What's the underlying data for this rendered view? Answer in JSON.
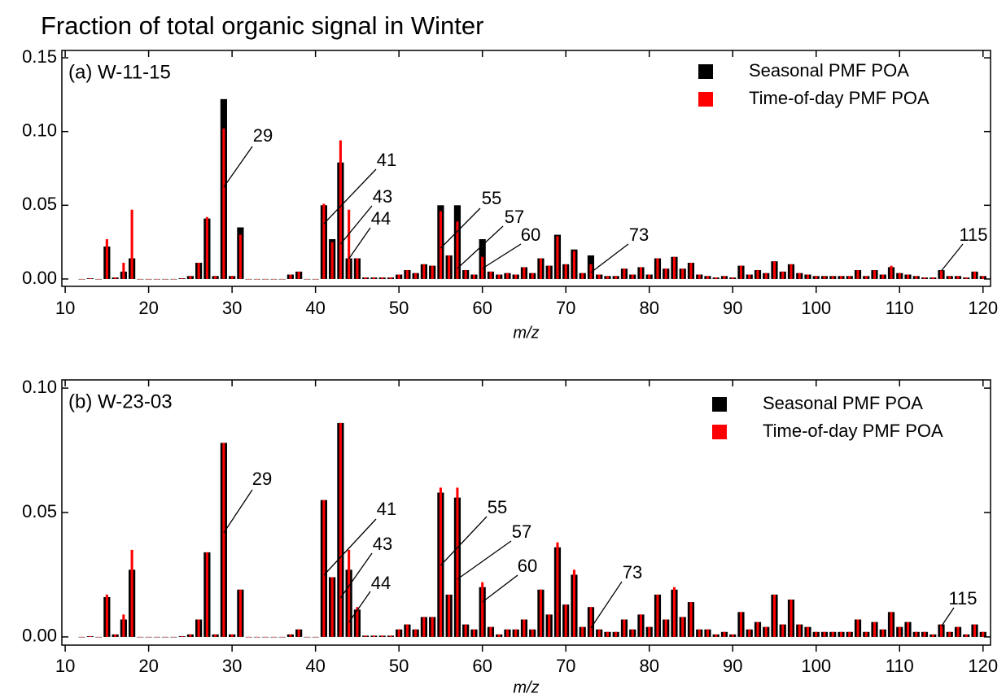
{
  "title": "Fraction of total organic signal in Winter",
  "chart_data": [
    {
      "type": "bar",
      "panel_label": "(a) W-11-15",
      "x_label": "m/z",
      "legend": "upper right",
      "xlim": [
        9.6,
        120.9
      ],
      "xticks": [
        10,
        20,
        30,
        40,
        50,
        60,
        70,
        80,
        90,
        100,
        110,
        120
      ],
      "ylim": [
        -0.005,
        0.155
      ],
      "yticks": [
        {
          "value": 0,
          "label": "0.00"
        },
        {
          "value": 0.05,
          "label": "0.05"
        },
        {
          "value": 0.1,
          "label": "0.10"
        },
        {
          "value": 0.15,
          "label": "0.15"
        }
      ],
      "annotations": [
        29,
        41,
        43,
        44,
        55,
        57,
        60,
        73,
        115
      ],
      "x": [
        12,
        13,
        14,
        15,
        16,
        17,
        18,
        19,
        20,
        21,
        22,
        23,
        24,
        25,
        26,
        27,
        28,
        29,
        30,
        31,
        32,
        33,
        34,
        35,
        36,
        37,
        38,
        39,
        40,
        41,
        42,
        43,
        44,
        45,
        46,
        47,
        48,
        49,
        50,
        51,
        52,
        53,
        54,
        55,
        56,
        57,
        58,
        59,
        60,
        61,
        62,
        63,
        64,
        65,
        66,
        67,
        68,
        69,
        70,
        71,
        72,
        73,
        74,
        75,
        76,
        77,
        78,
        79,
        80,
        81,
        82,
        83,
        84,
        85,
        86,
        87,
        88,
        89,
        90,
        91,
        92,
        93,
        94,
        95,
        96,
        97,
        98,
        99,
        100,
        101,
        102,
        103,
        104,
        105,
        106,
        107,
        108,
        109,
        110,
        111,
        112,
        113,
        114,
        115,
        116,
        117,
        118,
        119,
        120
      ],
      "series": [
        {
          "name": "Seasonal PMF POA",
          "color": "#000000",
          "values": [
            0,
            0.0005,
            0,
            0.022,
            0.001,
            0.005,
            0.014,
            0,
            0,
            0,
            0,
            0,
            0.0005,
            0.002,
            0.011,
            0.041,
            0.002,
            0.122,
            0.002,
            0.035,
            0,
            0,
            0,
            0,
            0,
            0.003,
            0.005,
            0,
            0,
            0.05,
            0.027,
            0.079,
            0.014,
            0.014,
            0.001,
            0.001,
            0.001,
            0.001,
            0.003,
            0.006,
            0.004,
            0.01,
            0.009,
            0.05,
            0.016,
            0.05,
            0.006,
            0.003,
            0.027,
            0.005,
            0.003,
            0.004,
            0.003,
            0.008,
            0.004,
            0.014,
            0.009,
            0.03,
            0.01,
            0.02,
            0.004,
            0.016,
            0.003,
            0.002,
            0.002,
            0.007,
            0.003,
            0.008,
            0.003,
            0.014,
            0.007,
            0.015,
            0.007,
            0.011,
            0.003,
            0.002,
            0.001,
            0.002,
            0.001,
            0.009,
            0.003,
            0.006,
            0.004,
            0.012,
            0.005,
            0.01,
            0.004,
            0.003,
            0.002,
            0.002,
            0.002,
            0.002,
            0.002,
            0.006,
            0.002,
            0.006,
            0.003,
            0.008,
            0.004,
            0.003,
            0.002,
            0.001,
            0.001,
            0.006,
            0.002,
            0.002,
            0.001,
            0.005,
            0.002
          ]
        },
        {
          "name": "Time-of-day PMF POA",
          "color": "#ff0000",
          "values": [
            0,
            0.0005,
            0,
            0.027,
            0.001,
            0.011,
            0.047,
            0,
            0,
            0,
            0,
            0,
            0.0005,
            0.002,
            0.011,
            0.042,
            0.002,
            0.102,
            0.002,
            0.03,
            0,
            0,
            0,
            0,
            0,
            0.003,
            0.005,
            0,
            0,
            0.051,
            0.025,
            0.094,
            0.047,
            0.014,
            0.001,
            0.001,
            0.001,
            0.001,
            0.003,
            0.006,
            0.004,
            0.01,
            0.009,
            0.046,
            0.016,
            0.039,
            0.006,
            0.003,
            0.015,
            0.005,
            0.003,
            0.004,
            0.003,
            0.008,
            0.004,
            0.014,
            0.009,
            0.029,
            0.01,
            0.019,
            0.004,
            0.01,
            0.003,
            0.002,
            0.002,
            0.007,
            0.003,
            0.008,
            0.003,
            0.014,
            0.007,
            0.015,
            0.007,
            0.011,
            0.003,
            0.002,
            0.001,
            0.002,
            0.001,
            0.009,
            0.003,
            0.006,
            0.004,
            0.012,
            0.005,
            0.01,
            0.004,
            0.003,
            0.002,
            0.002,
            0.002,
            0.002,
            0.002,
            0.006,
            0.002,
            0.006,
            0.003,
            0.009,
            0.004,
            0.003,
            0.002,
            0.001,
            0.001,
            0.006,
            0.002,
            0.002,
            0.001,
            0.005,
            0.002
          ]
        }
      ]
    },
    {
      "type": "bar",
      "panel_label": "(b) W-23-03",
      "x_label": "m/z",
      "legend": "upper right",
      "xlim": [
        9.6,
        120.9
      ],
      "xticks": [
        10,
        20,
        30,
        40,
        50,
        60,
        70,
        80,
        90,
        100,
        110,
        120
      ],
      "ylim": [
        -0.0033,
        0.1033
      ],
      "yticks": [
        {
          "value": 0,
          "label": "0.00"
        },
        {
          "value": 0.05,
          "label": "0.05"
        },
        {
          "value": 0.1,
          "label": "0.10"
        }
      ],
      "annotations": [
        29,
        41,
        43,
        44,
        55,
        57,
        60,
        73,
        115
      ],
      "x": [
        12,
        13,
        14,
        15,
        16,
        17,
        18,
        19,
        20,
        21,
        22,
        23,
        24,
        25,
        26,
        27,
        28,
        29,
        30,
        31,
        32,
        33,
        34,
        35,
        36,
        37,
        38,
        39,
        40,
        41,
        42,
        43,
        44,
        45,
        46,
        47,
        48,
        49,
        50,
        51,
        52,
        53,
        54,
        55,
        56,
        57,
        58,
        59,
        60,
        61,
        62,
        63,
        64,
        65,
        66,
        67,
        68,
        69,
        70,
        71,
        72,
        73,
        74,
        75,
        76,
        77,
        78,
        79,
        80,
        81,
        82,
        83,
        84,
        85,
        86,
        87,
        88,
        89,
        90,
        91,
        92,
        93,
        94,
        95,
        96,
        97,
        98,
        99,
        100,
        101,
        102,
        103,
        104,
        105,
        106,
        107,
        108,
        109,
        110,
        111,
        112,
        113,
        114,
        115,
        116,
        117,
        118,
        119,
        120
      ],
      "series": [
        {
          "name": "Seasonal PMF POA",
          "color": "#000000",
          "values": [
            0,
            0.0003,
            0,
            0.016,
            0.001,
            0.007,
            0.027,
            0,
            0,
            0,
            0,
            0,
            0.0003,
            0.001,
            0.007,
            0.034,
            0.001,
            0.078,
            0.001,
            0.019,
            0,
            0,
            0,
            0,
            0,
            0.001,
            0.003,
            0,
            0,
            0.055,
            0.024,
            0.086,
            0.027,
            0.011,
            0.0005,
            0.0005,
            0.0005,
            0.0005,
            0.003,
            0.005,
            0.003,
            0.008,
            0.008,
            0.058,
            0.017,
            0.056,
            0.005,
            0.003,
            0.02,
            0.004,
            0.001,
            0.003,
            0.003,
            0.007,
            0.003,
            0.019,
            0.009,
            0.036,
            0.013,
            0.025,
            0.004,
            0.012,
            0.003,
            0.002,
            0.002,
            0.007,
            0.003,
            0.009,
            0.004,
            0.017,
            0.007,
            0.019,
            0.008,
            0.014,
            0.003,
            0.003,
            0.001,
            0.002,
            0.001,
            0.01,
            0.003,
            0.006,
            0.004,
            0.017,
            0.005,
            0.015,
            0.005,
            0.004,
            0.002,
            0.002,
            0.002,
            0.002,
            0.002,
            0.007,
            0.002,
            0.006,
            0.003,
            0.01,
            0.004,
            0.006,
            0.002,
            0.002,
            0.001,
            0.005,
            0.002,
            0.004,
            0.001,
            0.005,
            0.002
          ]
        },
        {
          "name": "Time-of-day PMF POA",
          "color": "#ff0000",
          "values": [
            0,
            0.0003,
            0,
            0.017,
            0.001,
            0.009,
            0.035,
            0,
            0,
            0,
            0,
            0,
            0.0003,
            0.001,
            0.007,
            0.034,
            0.001,
            0.078,
            0.001,
            0.019,
            0,
            0,
            0,
            0,
            0,
            0.001,
            0.003,
            0,
            0,
            0.055,
            0.024,
            0.086,
            0.035,
            0.012,
            0.0005,
            0.0005,
            0.0005,
            0.0005,
            0.003,
            0.005,
            0.003,
            0.008,
            0.008,
            0.06,
            0.017,
            0.06,
            0.005,
            0.003,
            0.022,
            0.004,
            0.001,
            0.003,
            0.003,
            0.007,
            0.003,
            0.019,
            0.009,
            0.038,
            0.013,
            0.027,
            0.004,
            0.012,
            0.003,
            0.002,
            0.002,
            0.007,
            0.003,
            0.009,
            0.004,
            0.017,
            0.007,
            0.02,
            0.008,
            0.014,
            0.003,
            0.003,
            0.001,
            0.002,
            0.001,
            0.01,
            0.003,
            0.006,
            0.004,
            0.017,
            0.005,
            0.015,
            0.005,
            0.004,
            0.002,
            0.002,
            0.002,
            0.002,
            0.002,
            0.007,
            0.002,
            0.006,
            0.003,
            0.01,
            0.004,
            0.006,
            0.002,
            0.002,
            0.001,
            0.005,
            0.002,
            0.004,
            0.001,
            0.005,
            0.002
          ]
        }
      ]
    }
  ]
}
